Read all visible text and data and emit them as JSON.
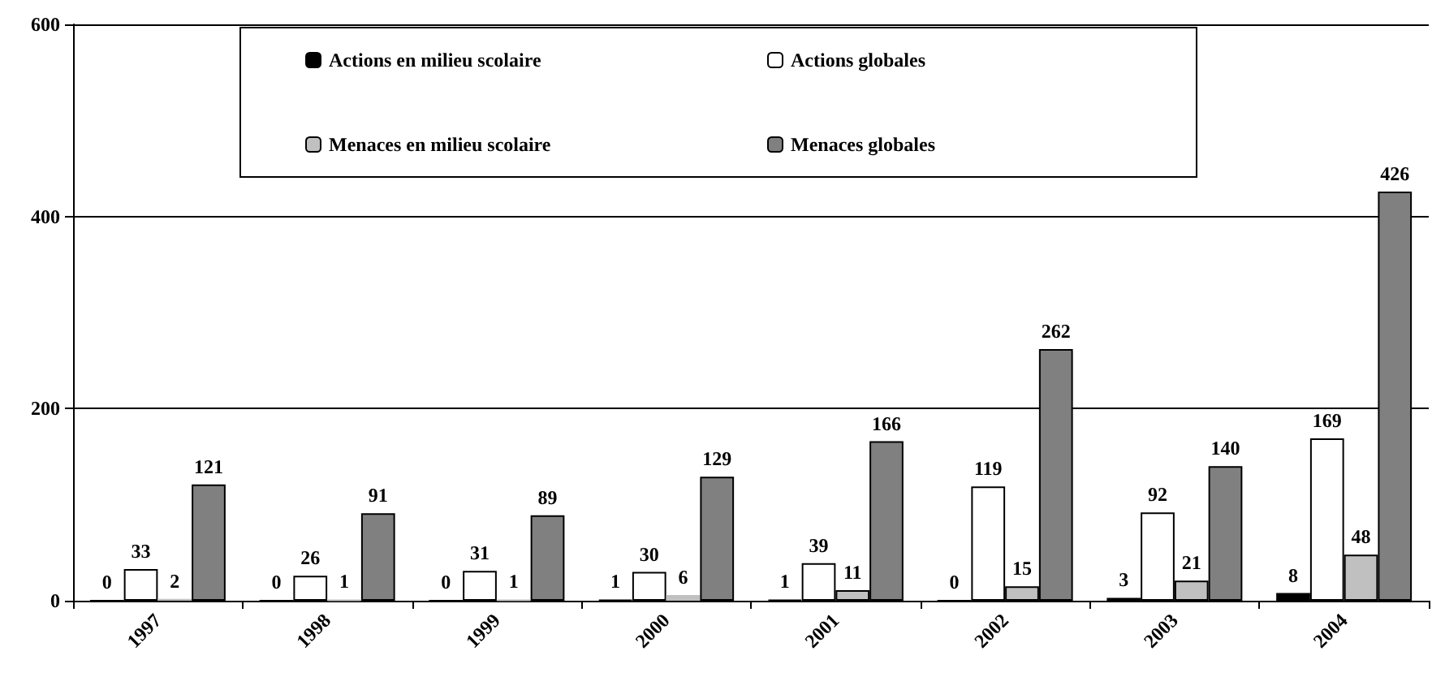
{
  "chart_data": {
    "type": "bar",
    "categories": [
      "1997",
      "1998",
      "1999",
      "2000",
      "2001",
      "2002",
      "2003",
      "2004"
    ],
    "series": [
      {
        "name": "Actions en milieu scolaire",
        "color": "#000000",
        "values": [
          0,
          0,
          0,
          1,
          1,
          0,
          3,
          8
        ]
      },
      {
        "name": "Actions globales",
        "color": "#ffffff",
        "values": [
          33,
          26,
          31,
          30,
          39,
          119,
          92,
          169
        ]
      },
      {
        "name": "Menaces en milieu scolaire",
        "color": "#c0c0c0",
        "values": [
          2,
          1,
          1,
          6,
          11,
          15,
          21,
          48
        ]
      },
      {
        "name": "Menaces globales",
        "color": "#808080",
        "values": [
          121,
          91,
          89,
          129,
          166,
          262,
          140,
          426
        ]
      }
    ],
    "ylim": [
      0,
      600
    ],
    "yticks": [
      0,
      200,
      400,
      600
    ],
    "grid": "y",
    "legend": "top",
    "data_labels": true
  }
}
